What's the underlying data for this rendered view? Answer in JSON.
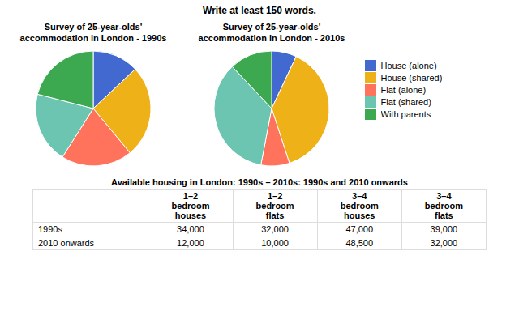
{
  "title": "Write at least 150 words.",
  "chart_data": [
    {
      "type": "pie",
      "title": "Survey of 25-year-olds'\naccommodation in London - 1990s",
      "categories": [
        "House (alone)",
        "House (shared)",
        "Flat (alone)",
        "Flat (shared)",
        "With parents"
      ],
      "values": [
        13,
        26,
        20,
        20,
        21
      ]
    },
    {
      "type": "pie",
      "title": "Survey of 25-year-olds'\naccommodation in London - 2010s",
      "categories": [
        "House (alone)",
        "House (shared)",
        "Flat (alone)",
        "Flat (shared)",
        "With parents"
      ],
      "values": [
        7,
        38,
        8,
        35,
        12
      ],
      "legend": "right"
    }
  ],
  "table": {
    "title": "Available housing in London: 1990s – 2010s: 1990s and 2010 onwards",
    "columns": [
      "1–2\nbedroom\nhouses",
      "1–2\nbedroom\nflats",
      "3–4\nbedroom\nhouses",
      "3–4\nbedroom\nflats"
    ],
    "rows": [
      {
        "label": "1990s",
        "values": [
          34000,
          32000,
          47000,
          39000
        ],
        "value_labels": [
          "34,000",
          "32,000",
          "47,000",
          "39,000"
        ]
      },
      {
        "label": "2010 onwards",
        "values": [
          12000,
          10000,
          48500,
          32000
        ],
        "value_labels": [
          "12,000",
          "10,000",
          "48,500",
          "32,000"
        ]
      }
    ]
  }
}
